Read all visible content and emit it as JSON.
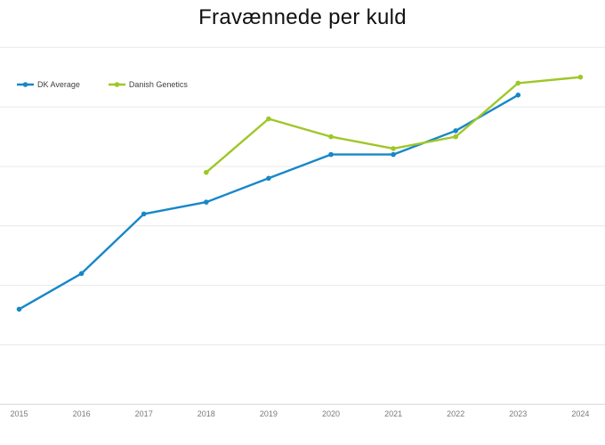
{
  "chart_data": {
    "type": "line",
    "title": "Fravænnede per kuld",
    "x": [
      2015,
      2016,
      2017,
      2018,
      2019,
      2020,
      2021,
      2022,
      2023,
      2024
    ],
    "series": [
      {
        "name": "DK Average",
        "color": "#1787c9",
        "values": [
          11.8,
          12.1,
          12.6,
          12.7,
          12.9,
          13.1,
          13.1,
          13.3,
          13.6,
          null
        ]
      },
      {
        "name": "Danish Genetics",
        "color": "#9ec728",
        "values": [
          null,
          null,
          null,
          12.95,
          13.4,
          13.25,
          13.15,
          13.25,
          13.7,
          13.75
        ]
      }
    ],
    "ylim": [
      11.0,
      14.0
    ],
    "gridline_step": 0.5,
    "y_axis_labels_visible": false,
    "grid": "horizontal",
    "legend_position": "top-left",
    "marker": "dot",
    "colors": {
      "gridline": "#e9e9e9",
      "axis_line": "#d6d6d6",
      "x_tick_label": "#7a7a7a",
      "title": "#111111",
      "legend_text": "#3f3f3f",
      "background": "#ffffff"
    }
  }
}
